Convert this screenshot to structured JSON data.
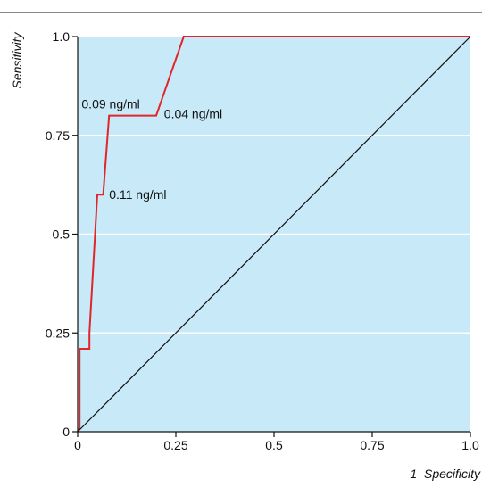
{
  "colors": {
    "plot_background": "#c8e9f8",
    "gridline": "#ffffff",
    "roc_curve": "#e0262b",
    "diagonal": "#111111",
    "axis": "#111111",
    "top_rule": "#111111"
  },
  "chart_data": {
    "type": "line",
    "title": "",
    "xlabel": "1–Specificity",
    "ylabel": "Sensitivity",
    "xlim": [
      0,
      1
    ],
    "ylim": [
      0,
      1
    ],
    "grid": "horizontal",
    "x_ticks": [
      {
        "value": 0,
        "label": "0"
      },
      {
        "value": 0.25,
        "label": "0.25"
      },
      {
        "value": 0.5,
        "label": "0.5"
      },
      {
        "value": 0.75,
        "label": "0.75"
      },
      {
        "value": 1,
        "label": "1.0"
      }
    ],
    "y_ticks": [
      {
        "value": 0,
        "label": "0"
      },
      {
        "value": 0.25,
        "label": "0.25"
      },
      {
        "value": 0.5,
        "label": "0.5"
      },
      {
        "value": 0.75,
        "label": "0.75"
      },
      {
        "value": 1,
        "label": "1.0"
      }
    ],
    "series": [
      {
        "role": "roc-curve",
        "color": "#e0262b",
        "points": [
          [
            0,
            0
          ],
          [
            0.005,
            0.01
          ],
          [
            0.005,
            0.21
          ],
          [
            0.03,
            0.21
          ],
          [
            0.03,
            0.25
          ],
          [
            0.05,
            0.6
          ],
          [
            0.065,
            0.6
          ],
          [
            0.08,
            0.8
          ],
          [
            0.2,
            0.8
          ],
          [
            0.27,
            1.0
          ],
          [
            1.0,
            1.0
          ]
        ]
      },
      {
        "role": "reference-diagonal",
        "color": "#111111",
        "points": [
          [
            0,
            0
          ],
          [
            1,
            1
          ]
        ]
      }
    ],
    "annotations": [
      {
        "text": "0.09 ng/ml",
        "x": 0.01,
        "y": 0.83,
        "anchor": "start"
      },
      {
        "text": "0.04 ng/ml",
        "x": 0.22,
        "y": 0.805,
        "anchor": "start"
      },
      {
        "text": "0.11 ng/ml",
        "x": 0.08,
        "y": 0.6,
        "anchor": "start"
      }
    ]
  }
}
